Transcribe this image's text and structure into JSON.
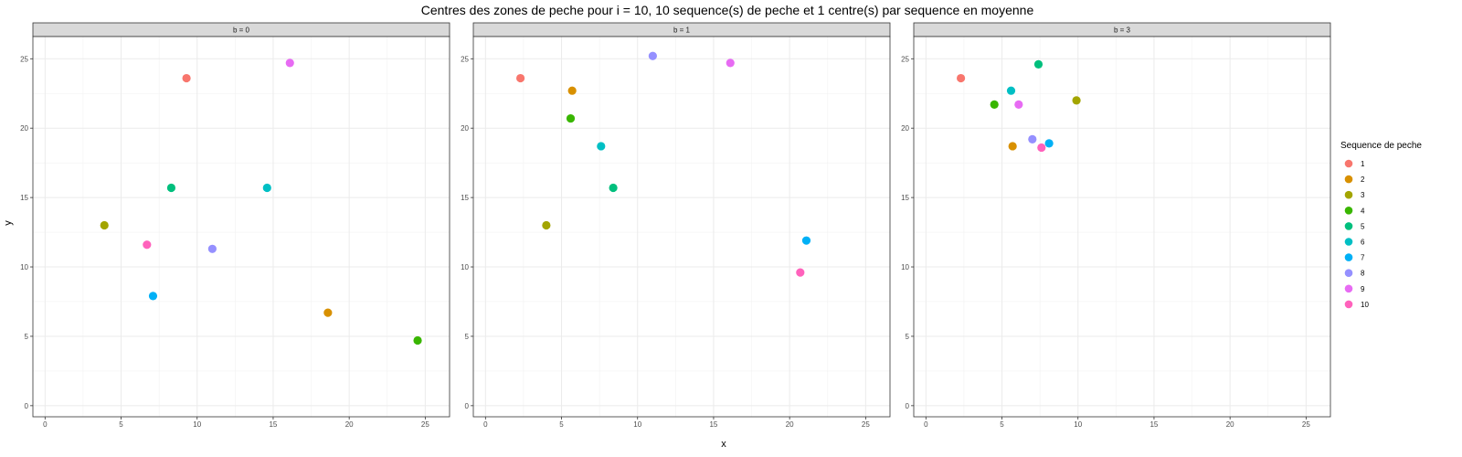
{
  "chart_data": {
    "type": "scatter",
    "title": "Centres des zones de peche pour i = 10, 10 sequence(s) de peche et 1 centre(s) par sequence en moyenne",
    "xlabel": "x",
    "ylabel": "y",
    "xlim": [
      -0.8,
      26.6
    ],
    "ylim": [
      -0.8,
      26.6
    ],
    "x_ticks": [
      0,
      5,
      10,
      15,
      20,
      25
    ],
    "y_ticks": [
      0,
      5,
      10,
      15,
      20,
      25
    ],
    "grid": true,
    "legend": {
      "title": "Sequence de peche",
      "position": "right",
      "entries": [
        {
          "label": "1",
          "color": "#F8766D"
        },
        {
          "label": "2",
          "color": "#D89000"
        },
        {
          "label": "3",
          "color": "#A3A500"
        },
        {
          "label": "4",
          "color": "#39B600"
        },
        {
          "label": "5",
          "color": "#00BF7D"
        },
        {
          "label": "6",
          "color": "#00BFC4"
        },
        {
          "label": "7",
          "color": "#00B0F6"
        },
        {
          "label": "8",
          "color": "#9590FF"
        },
        {
          "label": "9",
          "color": "#E76BF3"
        },
        {
          "label": "10",
          "color": "#FF62BC"
        }
      ]
    },
    "facets": [
      {
        "label": "b = 0",
        "points": [
          {
            "seq": "1",
            "x": 9.3,
            "y": 23.6
          },
          {
            "seq": "2",
            "x": 18.6,
            "y": 6.7
          },
          {
            "seq": "3",
            "x": 3.9,
            "y": 13.0
          },
          {
            "seq": "4",
            "x": 24.5,
            "y": 4.7
          },
          {
            "seq": "5",
            "x": 8.3,
            "y": 15.7
          },
          {
            "seq": "6",
            "x": 14.6,
            "y": 15.7
          },
          {
            "seq": "7",
            "x": 7.1,
            "y": 7.9
          },
          {
            "seq": "8",
            "x": 11.0,
            "y": 11.3
          },
          {
            "seq": "9",
            "x": 16.1,
            "y": 24.7
          },
          {
            "seq": "10",
            "x": 6.7,
            "y": 11.6
          }
        ]
      },
      {
        "label": "b = 1",
        "points": [
          {
            "seq": "1",
            "x": 2.3,
            "y": 23.6
          },
          {
            "seq": "2",
            "x": 5.7,
            "y": 22.7
          },
          {
            "seq": "3",
            "x": 4.0,
            "y": 13.0
          },
          {
            "seq": "4",
            "x": 5.6,
            "y": 20.7
          },
          {
            "seq": "5",
            "x": 8.4,
            "y": 15.7
          },
          {
            "seq": "6",
            "x": 7.6,
            "y": 18.7
          },
          {
            "seq": "7",
            "x": 21.1,
            "y": 11.9
          },
          {
            "seq": "8",
            "x": 11.0,
            "y": 25.2
          },
          {
            "seq": "9",
            "x": 16.1,
            "y": 24.7
          },
          {
            "seq": "10",
            "x": 20.7,
            "y": 9.6
          }
        ]
      },
      {
        "label": "b = 3",
        "points": [
          {
            "seq": "1",
            "x": 2.3,
            "y": 23.6
          },
          {
            "seq": "2",
            "x": 5.7,
            "y": 18.7
          },
          {
            "seq": "3",
            "x": 9.9,
            "y": 22.0
          },
          {
            "seq": "4",
            "x": 4.5,
            "y": 21.7
          },
          {
            "seq": "5",
            "x": 7.4,
            "y": 24.6
          },
          {
            "seq": "6",
            "x": 5.6,
            "y": 22.7
          },
          {
            "seq": "7",
            "x": 8.1,
            "y": 18.9
          },
          {
            "seq": "8",
            "x": 7.0,
            "y": 19.2
          },
          {
            "seq": "9",
            "x": 6.1,
            "y": 21.7
          },
          {
            "seq": "10",
            "x": 7.6,
            "y": 18.6
          }
        ]
      }
    ]
  }
}
